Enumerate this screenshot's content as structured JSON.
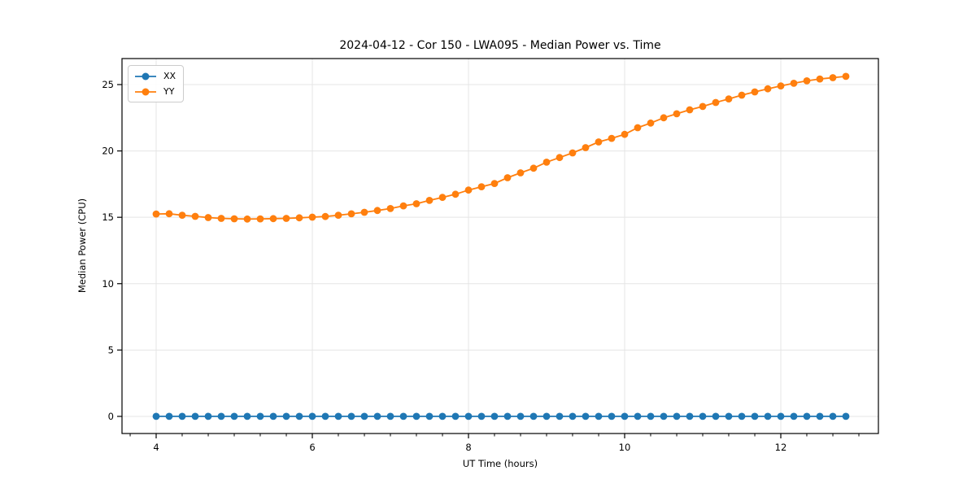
{
  "title": "2024-04-12 - Cor 150 - LWA095 - Median Power vs. Time",
  "xlabel": "UT Time (hours)",
  "ylabel": "Median Power (CPU)",
  "legend": {
    "position": "upper left",
    "entries": [
      {
        "label": "XX",
        "color": "#1f77b4"
      },
      {
        "label": "YY",
        "color": "#ff7f0e"
      }
    ]
  },
  "colors": {
    "series_xx": "#1f77b4",
    "series_yy": "#ff7f0e",
    "grid": "#e5e5e5",
    "spine": "#000000"
  },
  "chart_data": {
    "type": "line",
    "title": "2024-04-12 - Cor 150 - LWA095 - Median Power vs. Time",
    "xlabel": "UT Time (hours)",
    "ylabel": "Median Power (CPU)",
    "xlim": [
      3.5625,
      13.25
    ],
    "ylim": [
      -1.29,
      26.96
    ],
    "x_major_ticks": [
      4,
      6,
      8,
      10,
      12
    ],
    "x_minor_ticks": [
      3.667,
      4.333,
      4.667,
      5.0,
      5.333,
      5.667,
      6.333,
      6.667,
      7.0,
      7.333,
      7.667,
      8.333,
      8.667,
      9.0,
      9.333,
      9.667,
      10.333,
      10.667,
      11.0,
      11.333,
      11.667,
      12.333,
      12.667,
      13.0
    ],
    "y_ticks": [
      0,
      5,
      10,
      15,
      20,
      25
    ],
    "grid": true,
    "legend_position": "upper left",
    "marker": "o",
    "x": [
      4.0,
      4.167,
      4.333,
      4.5,
      4.667,
      4.833,
      5.0,
      5.167,
      5.333,
      5.5,
      5.667,
      5.833,
      6.0,
      6.167,
      6.333,
      6.5,
      6.667,
      6.833,
      7.0,
      7.167,
      7.333,
      7.5,
      7.667,
      7.833,
      8.0,
      8.167,
      8.333,
      8.5,
      8.667,
      8.833,
      9.0,
      9.167,
      9.333,
      9.5,
      9.667,
      9.833,
      10.0,
      10.167,
      10.333,
      10.5,
      10.667,
      10.833,
      11.0,
      11.167,
      11.333,
      11.5,
      11.667,
      11.833,
      12.0,
      12.167,
      12.333,
      12.5,
      12.667,
      12.833
    ],
    "series": [
      {
        "name": "XX",
        "color": "#1f77b4",
        "values": [
          0,
          0,
          0,
          0,
          0,
          0,
          0,
          0,
          0,
          0,
          0,
          0,
          0,
          0,
          0,
          0,
          0,
          0,
          0,
          0,
          0,
          0,
          0,
          0,
          0,
          0,
          0,
          0,
          0,
          0,
          0,
          0,
          0,
          0,
          0,
          0,
          0,
          0,
          0,
          0,
          0,
          0,
          0,
          0,
          0,
          0,
          0,
          0,
          0,
          0,
          0,
          0,
          0,
          0
        ]
      },
      {
        "name": "YY",
        "color": "#ff7f0e",
        "values": [
          15.25,
          15.27,
          15.16,
          15.07,
          14.98,
          14.92,
          14.89,
          14.87,
          14.88,
          14.9,
          14.92,
          14.96,
          15.01,
          15.06,
          15.16,
          15.26,
          15.38,
          15.51,
          15.66,
          15.86,
          16.02,
          16.27,
          16.5,
          16.74,
          17.05,
          17.3,
          17.55,
          17.98,
          18.35,
          18.7,
          19.15,
          19.5,
          19.85,
          20.25,
          20.68,
          20.95,
          21.25,
          21.75,
          22.1,
          22.5,
          22.8,
          23.1,
          23.35,
          23.65,
          23.92,
          24.2,
          24.45,
          24.68,
          24.9,
          25.1,
          25.28,
          25.42,
          25.52,
          25.62
        ]
      }
    ]
  }
}
